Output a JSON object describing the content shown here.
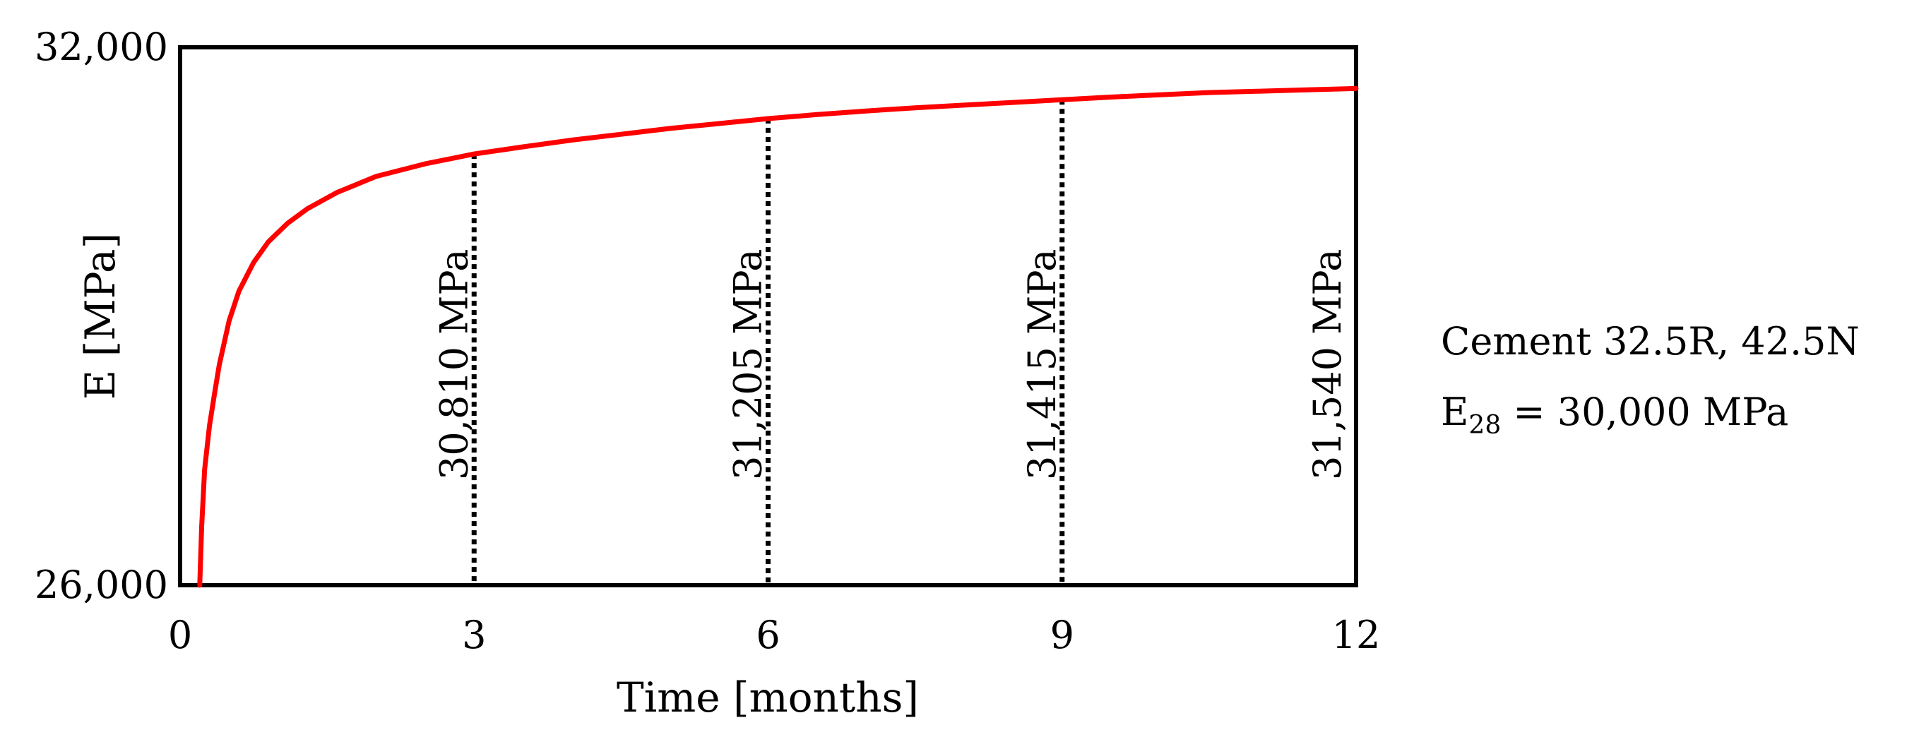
{
  "chart_data": {
    "type": "line",
    "xlabel": "Time [months]",
    "ylabel": "E [MPa]",
    "xlim": [
      0,
      12
    ],
    "ylim": [
      26000,
      32000
    ],
    "x_ticks": [
      "0",
      "3",
      "6",
      "9",
      "12"
    ],
    "y_ticks": [
      "26,000",
      "32,000"
    ],
    "series": [
      {
        "color": "#ff0000",
        "x": [
          0.2,
          0.22,
          0.25,
          0.3,
          0.35,
          0.4,
          0.5,
          0.6,
          0.75,
          0.9,
          1.1,
          1.3,
          1.6,
          2.0,
          2.5,
          3.0,
          3.5,
          4.0,
          4.5,
          5.0,
          5.5,
          6.0,
          6.5,
          7.0,
          7.5,
          8.0,
          8.5,
          9.0,
          9.5,
          10.0,
          10.5,
          11.0,
          11.5,
          12.0
        ],
        "y": [
          26000,
          26650,
          27290,
          27780,
          28130,
          28460,
          28950,
          29280,
          29600,
          29830,
          30040,
          30200,
          30380,
          30560,
          30700,
          30810,
          30890,
          30965,
          31030,
          31095,
          31150,
          31205,
          31250,
          31290,
          31325,
          31355,
          31385,
          31415,
          31445,
          31470,
          31495,
          31510,
          31525,
          31540
        ]
      }
    ],
    "markers": [
      {
        "x": 3,
        "y": 30810,
        "label": "30,810 MPa"
      },
      {
        "x": 6,
        "y": 31205,
        "label": "31,205 MPa"
      },
      {
        "x": 9,
        "y": 31415,
        "label": "31,415 MPa"
      },
      {
        "x": 12,
        "y": 31540,
        "label": "31,540 MPa"
      }
    ],
    "annotation": {
      "line1": "Cement 32.5R, 42.5N",
      "line2_main": "E",
      "line2_sub": "28",
      "line2_rest": " = 30,000 MPa"
    }
  }
}
